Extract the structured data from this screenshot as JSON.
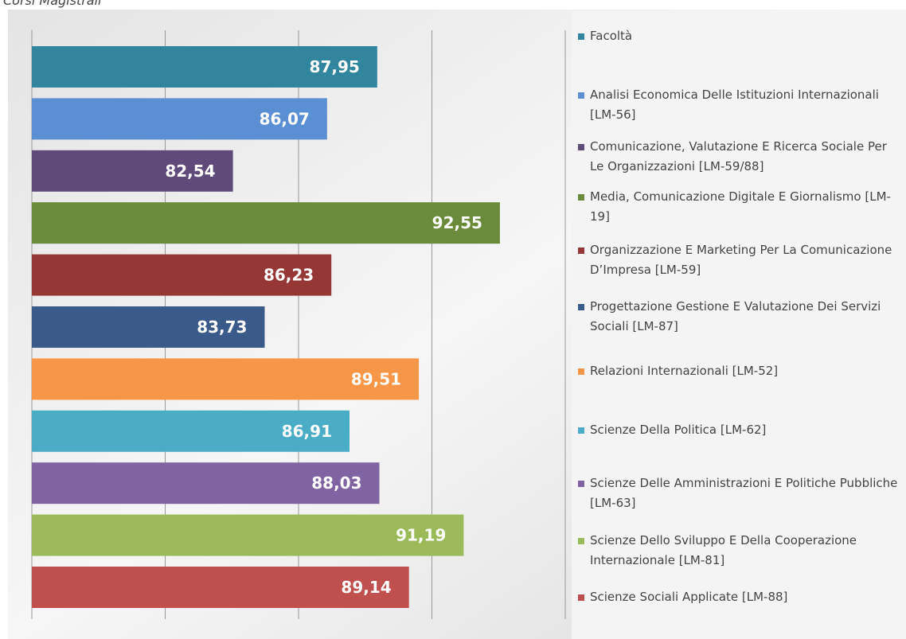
{
  "chart_data": {
    "type": "bar",
    "orientation": "horizontal",
    "title": "Corsi Magistrali",
    "categories": [
      "Facoltà",
      "Analisi Economica Delle Istituzioni Internazionali [LM-56]",
      "Comunicazione, Valutazione E Ricerca Sociale Per Le Organizzazioni [LM-59/88]",
      "Media, Comunicazione Digitale E Giornalismo [LM-19]",
      "Organizzazione E Marketing Per La Comunicazione D’Impresa [LM-59]",
      "Progettazione Gestione E Valutazione Dei Servizi Sociali [LM-87]",
      "Relazioni Internazionali [LM-52]",
      "Scienze Della Politica [LM-62]",
      "Scienze Delle Amministrazioni E Politiche Pubbliche [LM-63]",
      "Scienze Dello Sviluppo E Della Cooperazione Internazionale [LM-81]",
      "Scienze Sociali Applicate [LM-88]"
    ],
    "values": [
      87.95,
      86.07,
      82.54,
      92.55,
      86.23,
      83.73,
      89.51,
      86.91,
      88.03,
      91.19,
      89.14
    ],
    "value_labels": [
      "87,95",
      "86,07",
      "82,54",
      "92,55",
      "86,23",
      "83,73",
      "89,51",
      "86,91",
      "88,03",
      "91,19",
      "89,14"
    ],
    "colors": [
      "#31859c",
      "#5b8fd4",
      "#5f4b7a",
      "#6b8a3a",
      "#953735",
      "#3a5a8a",
      "#f79646",
      "#4bacc6",
      "#8064a2",
      "#9bbb59",
      "#c0504d"
    ],
    "xlim": [
      75,
      95
    ],
    "xticks": [
      75,
      80,
      85,
      90,
      95
    ],
    "grid": true,
    "legend": "right"
  }
}
